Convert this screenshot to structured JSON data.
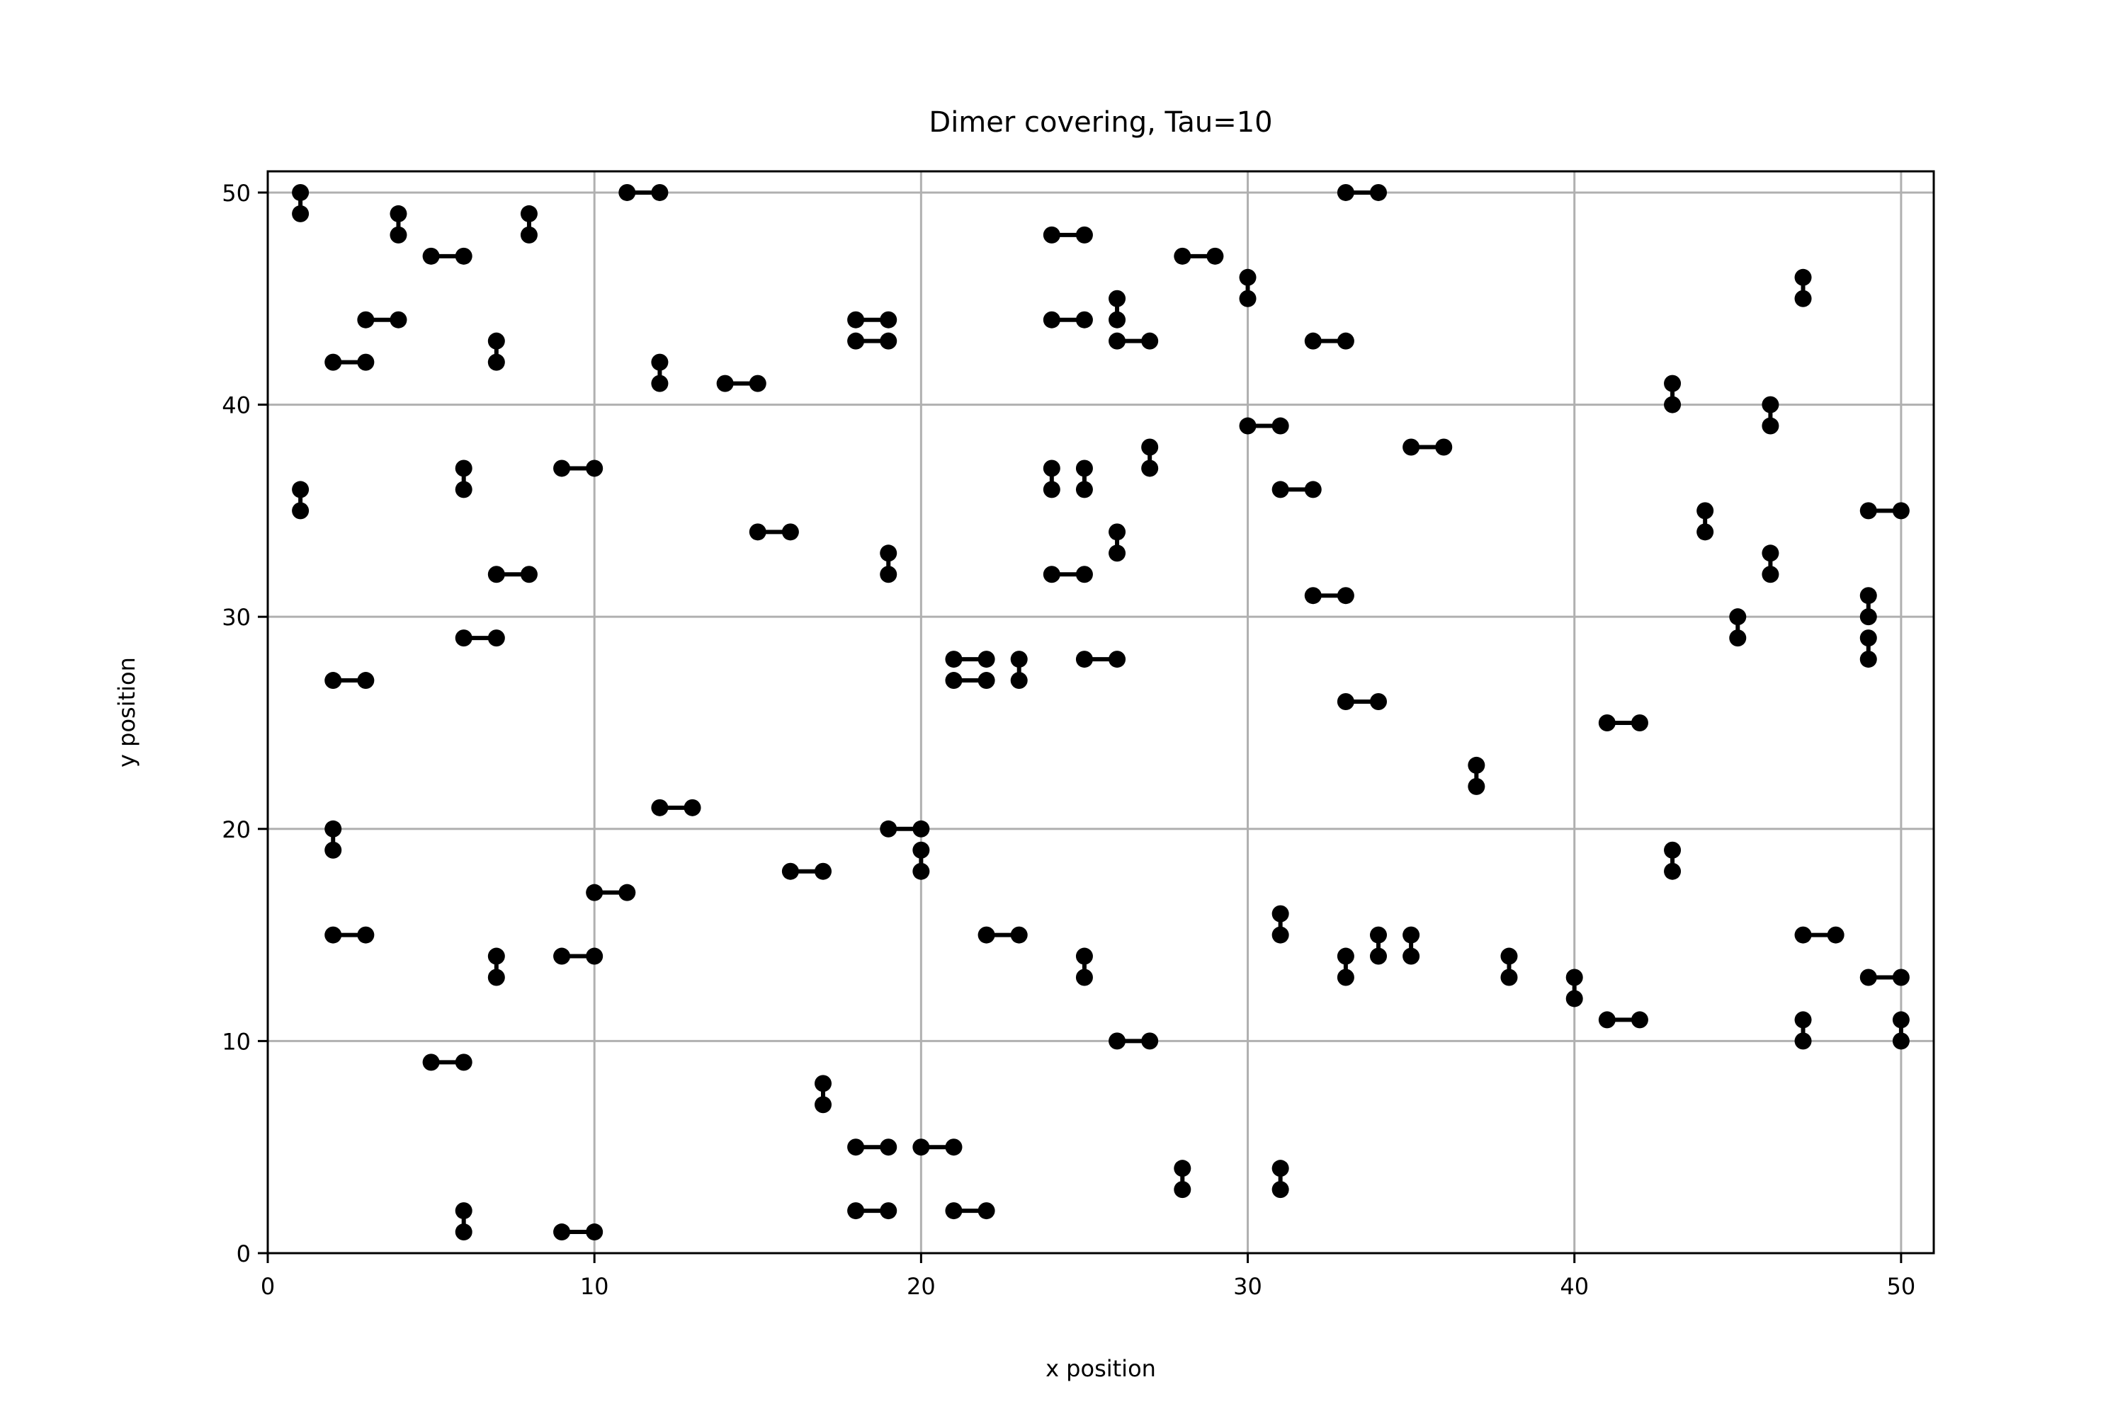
{
  "chart_data": {
    "type": "scatter",
    "title": "Dimer covering, Tau=10",
    "xlabel": "x position",
    "ylabel": "y position",
    "xlim": [
      0,
      51
    ],
    "ylim": [
      0,
      51
    ],
    "xticks": [
      0,
      10,
      20,
      30,
      40,
      50
    ],
    "yticks": [
      0,
      10,
      20,
      30,
      40,
      50
    ],
    "grid": true,
    "marker_color": "#000000",
    "grid_color": "#b0b0b0",
    "dimers": [
      [
        [
          1,
          50
        ],
        [
          1,
          49
        ]
      ],
      [
        [
          4,
          49
        ],
        [
          4,
          48
        ]
      ],
      [
        [
          8,
          49
        ],
        [
          8,
          48
        ]
      ],
      [
        [
          11,
          50
        ],
        [
          12,
          50
        ]
      ],
      [
        [
          5,
          47
        ],
        [
          6,
          47
        ]
      ],
      [
        [
          3,
          44
        ],
        [
          4,
          44
        ]
      ],
      [
        [
          2,
          42
        ],
        [
          3,
          42
        ]
      ],
      [
        [
          7,
          43
        ],
        [
          7,
          42
        ]
      ],
      [
        [
          12,
          42
        ],
        [
          12,
          41
        ]
      ],
      [
        [
          14,
          41
        ],
        [
          15,
          41
        ]
      ],
      [
        [
          1,
          36
        ],
        [
          1,
          35
        ]
      ],
      [
        [
          6,
          37
        ],
        [
          6,
          36
        ]
      ],
      [
        [
          9,
          37
        ],
        [
          10,
          37
        ]
      ],
      [
        [
          15,
          34
        ],
        [
          16,
          34
        ]
      ],
      [
        [
          7,
          32
        ],
        [
          8,
          32
        ]
      ],
      [
        [
          6,
          29
        ],
        [
          7,
          29
        ]
      ],
      [
        [
          2,
          27
        ],
        [
          3,
          27
        ]
      ],
      [
        [
          2,
          20
        ],
        [
          2,
          19
        ]
      ],
      [
        [
          2,
          15
        ],
        [
          3,
          15
        ]
      ],
      [
        [
          12,
          21
        ],
        [
          13,
          21
        ]
      ],
      [
        [
          10,
          17
        ],
        [
          11,
          17
        ]
      ],
      [
        [
          9,
          14
        ],
        [
          10,
          14
        ]
      ],
      [
        [
          7,
          14
        ],
        [
          7,
          13
        ]
      ],
      [
        [
          5,
          9
        ],
        [
          6,
          9
        ]
      ],
      [
        [
          6,
          2
        ],
        [
          6,
          1
        ]
      ],
      [
        [
          9,
          1
        ],
        [
          10,
          1
        ]
      ],
      [
        [
          16,
          18
        ],
        [
          17,
          18
        ]
      ],
      [
        [
          17,
          8
        ],
        [
          17,
          7
        ]
      ],
      [
        [
          18,
          5
        ],
        [
          19,
          5
        ]
      ],
      [
        [
          18,
          2
        ],
        [
          19,
          2
        ]
      ],
      [
        [
          18,
          44
        ],
        [
          19,
          44
        ]
      ],
      [
        [
          18,
          43
        ],
        [
          19,
          43
        ]
      ],
      [
        [
          19,
          33
        ],
        [
          19,
          32
        ]
      ],
      [
        [
          19,
          20
        ],
        [
          20,
          20
        ]
      ],
      [
        [
          20,
          19
        ],
        [
          20,
          18
        ]
      ],
      [
        [
          20,
          5
        ],
        [
          21,
          5
        ]
      ],
      [
        [
          21,
          2
        ],
        [
          22,
          2
        ]
      ],
      [
        [
          22,
          15
        ],
        [
          23,
          15
        ]
      ],
      [
        [
          21,
          28
        ],
        [
          22,
          28
        ]
      ],
      [
        [
          21,
          27
        ],
        [
          22,
          27
        ]
      ],
      [
        [
          23,
          28
        ],
        [
          23,
          27
        ]
      ],
      [
        [
          24,
          48
        ],
        [
          25,
          48
        ]
      ],
      [
        [
          24,
          44
        ],
        [
          25,
          44
        ]
      ],
      [
        [
          26,
          45
        ],
        [
          26,
          44
        ]
      ],
      [
        [
          26,
          43
        ],
        [
          27,
          43
        ]
      ],
      [
        [
          24,
          37
        ],
        [
          24,
          36
        ]
      ],
      [
        [
          25,
          37
        ],
        [
          25,
          36
        ]
      ],
      [
        [
          27,
          38
        ],
        [
          27,
          37
        ]
      ],
      [
        [
          26,
          34
        ],
        [
          26,
          33
        ]
      ],
      [
        [
          24,
          32
        ],
        [
          25,
          32
        ]
      ],
      [
        [
          25,
          28
        ],
        [
          26,
          28
        ]
      ],
      [
        [
          25,
          14
        ],
        [
          25,
          13
        ]
      ],
      [
        [
          26,
          10
        ],
        [
          27,
          10
        ]
      ],
      [
        [
          28,
          4
        ],
        [
          28,
          3
        ]
      ],
      [
        [
          28,
          47
        ],
        [
          29,
          47
        ]
      ],
      [
        [
          30,
          46
        ],
        [
          30,
          45
        ]
      ],
      [
        [
          33,
          50
        ],
        [
          34,
          50
        ]
      ],
      [
        [
          32,
          43
        ],
        [
          33,
          43
        ]
      ],
      [
        [
          30,
          39
        ],
        [
          31,
          39
        ]
      ],
      [
        [
          31,
          36
        ],
        [
          32,
          36
        ]
      ],
      [
        [
          32,
          31
        ],
        [
          33,
          31
        ]
      ],
      [
        [
          33,
          26
        ],
        [
          34,
          26
        ]
      ],
      [
        [
          35,
          38
        ],
        [
          36,
          38
        ]
      ],
      [
        [
          31,
          16
        ],
        [
          31,
          15
        ]
      ],
      [
        [
          33,
          14
        ],
        [
          33,
          13
        ]
      ],
      [
        [
          34,
          15
        ],
        [
          34,
          14
        ]
      ],
      [
        [
          35,
          15
        ],
        [
          35,
          14
        ]
      ],
      [
        [
          31,
          4
        ],
        [
          31,
          3
        ]
      ],
      [
        [
          37,
          23
        ],
        [
          37,
          22
        ]
      ],
      [
        [
          38,
          14
        ],
        [
          38,
          13
        ]
      ],
      [
        [
          40,
          13
        ],
        [
          40,
          12
        ]
      ],
      [
        [
          41,
          11
        ],
        [
          42,
          11
        ]
      ],
      [
        [
          41,
          25
        ],
        [
          42,
          25
        ]
      ],
      [
        [
          43,
          19
        ],
        [
          43,
          18
        ]
      ],
      [
        [
          43,
          41
        ],
        [
          43,
          40
        ]
      ],
      [
        [
          44,
          35
        ],
        [
          44,
          34
        ]
      ],
      [
        [
          45,
          30
        ],
        [
          45,
          29
        ]
      ],
      [
        [
          46,
          40
        ],
        [
          46,
          39
        ]
      ],
      [
        [
          46,
          33
        ],
        [
          46,
          32
        ]
      ],
      [
        [
          47,
          46
        ],
        [
          47,
          45
        ]
      ],
      [
        [
          49,
          35
        ],
        [
          50,
          35
        ]
      ],
      [
        [
          49,
          31
        ],
        [
          49,
          30
        ]
      ],
      [
        [
          49,
          29
        ],
        [
          49,
          28
        ]
      ],
      [
        [
          47,
          15
        ],
        [
          48,
          15
        ]
      ],
      [
        [
          47,
          11
        ],
        [
          47,
          10
        ]
      ],
      [
        [
          49,
          13
        ],
        [
          50,
          13
        ]
      ],
      [
        [
          50,
          11
        ],
        [
          50,
          10
        ]
      ]
    ]
  }
}
